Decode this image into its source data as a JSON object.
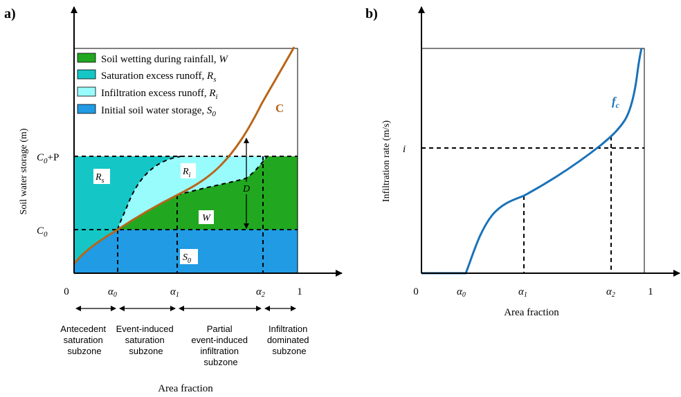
{
  "panel_a": {
    "label": "a)",
    "ylabel": "Soil water storage (m)",
    "xlabel": "Area fraction",
    "y_ticks": {
      "c0p": "C",
      "c0p_sub": "0",
      "c0p_rest": "+P",
      "c0": "C",
      "c0_sub": "0"
    },
    "x_ticks": {
      "zero": "0",
      "one": "1",
      "a0": "α",
      "a0_sub": "0",
      "a1": "α",
      "a1_sub": "1",
      "a2": "α",
      "a2_sub": "2"
    },
    "legend": [
      {
        "text": "Soil wetting during rainfall, ",
        "sym": "W",
        "sub": "",
        "color": "#21a820"
      },
      {
        "text": "Saturation excess runoff, ",
        "sym": "R",
        "sub": "s",
        "color": "#15c6c6"
      },
      {
        "text": "Infiltration excess runoff, ",
        "sym": "R",
        "sub": "i",
        "color": "#99fcfc"
      },
      {
        "text": "Initial soil water storage, ",
        "sym": "S",
        "sub": "0",
        "color": "#209be4"
      }
    ],
    "curve_label": "C",
    "region_labels": {
      "rs": "R",
      "rs_sub": "s",
      "ri": "R",
      "ri_sub": "i",
      "w": "W",
      "s0": "S",
      "s0_sub": "0",
      "d": "D"
    },
    "subzones": [
      [
        "Antecedent",
        "saturation",
        "subzone"
      ],
      [
        "Event-induced",
        "saturation",
        "subzone"
      ],
      [
        "Partial",
        "event-induced",
        "infiltration",
        "subzone"
      ],
      [
        "Infiltration",
        "dominated",
        "subzone"
      ]
    ]
  },
  "panel_b": {
    "label": "b)",
    "ylabel": "Infiltration rate (m/s)",
    "xlabel": "Area fraction",
    "y_tick_i": "i",
    "x_ticks": {
      "zero": "0",
      "one": "1",
      "a0": "α",
      "a0_sub": "0",
      "a1": "α",
      "a1_sub": "1",
      "a2": "α",
      "a2_sub": "2"
    },
    "curve_label": "f",
    "curve_label_sub": "c"
  },
  "colors": {
    "curve_c": "#b8661a",
    "curve_fc": "#1a72b8",
    "green": "#21a820",
    "teal": "#15c6c6",
    "light_cyan": "#99fcfc",
    "blue": "#209be4"
  }
}
